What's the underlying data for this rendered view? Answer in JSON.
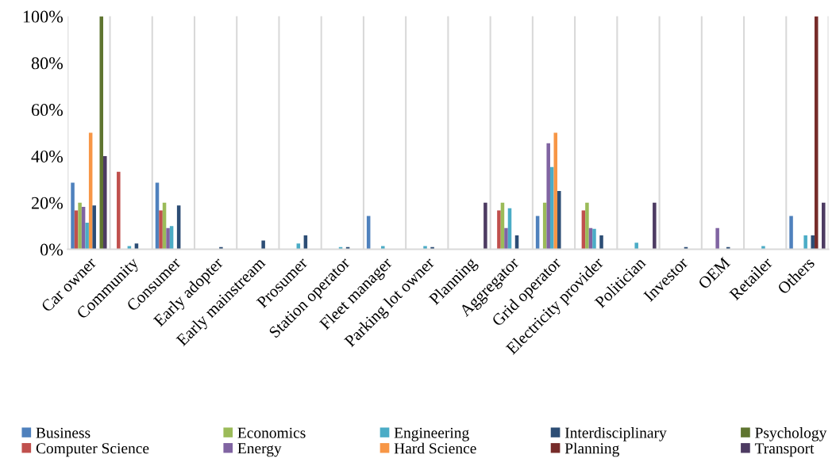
{
  "chart_data": {
    "type": "bar",
    "categories": [
      "Car owner",
      "Community",
      "Consumer",
      "Early adopter",
      "Early mainstream",
      "Prosumer",
      "Station operator",
      "Fleet manager",
      "Parking lot owner",
      "Planning",
      "Aggregator",
      "Grid operator",
      "Electricity provider",
      "Politician",
      "Investor",
      "OEM",
      "Retailer",
      "Others"
    ],
    "series": [
      {
        "name": "Business",
        "color": "#4f81bd",
        "values": [
          28.6,
          0,
          28.6,
          0,
          0,
          0,
          0,
          14.3,
          0,
          0,
          0,
          14.3,
          0,
          0,
          0,
          0,
          0,
          14.3
        ]
      },
      {
        "name": "Computer Science",
        "color": "#c0504d",
        "values": [
          16.7,
          33.3,
          16.7,
          0,
          0,
          0,
          0,
          0,
          0,
          0,
          16.7,
          0,
          16.7,
          0,
          0,
          0,
          0,
          0
        ]
      },
      {
        "name": "Economics",
        "color": "#9bbb59",
        "values": [
          20,
          0,
          20,
          0,
          0,
          0,
          0,
          0,
          0,
          0,
          20,
          20,
          20,
          0,
          0,
          0,
          0,
          0
        ]
      },
      {
        "name": "Energy",
        "color": "#8064a2",
        "values": [
          18.2,
          0,
          9.1,
          0,
          0,
          0,
          0,
          0,
          0,
          0,
          9.1,
          45.5,
          9.1,
          0,
          0,
          9.1,
          0,
          0
        ]
      },
      {
        "name": "Engineering",
        "color": "#4bacc6",
        "values": [
          11.4,
          1.4,
          10,
          0,
          0,
          2.5,
          1,
          1.4,
          1.4,
          0,
          17.6,
          35.3,
          8.8,
          2.8,
          0,
          0,
          1.4,
          6
        ]
      },
      {
        "name": "Hard Science",
        "color": "#f79646",
        "values": [
          50,
          0,
          0,
          0,
          0,
          0,
          0,
          0,
          0,
          0,
          0,
          50,
          0,
          0,
          0,
          0,
          0,
          0
        ]
      },
      {
        "name": "Interdisciplinary",
        "color": "#2c4d75",
        "values": [
          18.8,
          2.5,
          18.8,
          1,
          3.8,
          6,
          1,
          0,
          1,
          0,
          6,
          25,
          6,
          0,
          1,
          1,
          0,
          6
        ]
      },
      {
        "name": "Planning",
        "color": "#772c2a",
        "values": [
          0,
          0,
          0,
          0,
          0,
          0,
          0,
          0,
          0,
          0,
          0,
          0,
          0,
          0,
          0,
          0,
          0,
          100
        ]
      },
      {
        "name": "Psychology",
        "color": "#5f7530",
        "values": [
          100,
          0,
          0,
          0,
          0,
          0,
          0,
          0,
          0,
          0,
          0,
          0,
          0,
          0,
          0,
          0,
          0,
          0
        ]
      },
      {
        "name": "Transport",
        "color": "#4d3b62",
        "values": [
          40,
          0,
          0,
          0,
          0,
          0,
          0,
          0,
          0,
          20,
          0,
          0,
          0,
          20,
          0,
          0,
          0,
          20
        ]
      }
    ],
    "ylim": [
      0,
      100
    ],
    "yticks": [
      {
        "value": 0,
        "label": "0%"
      },
      {
        "value": 20,
        "label": "20%"
      },
      {
        "value": 40,
        "label": "40%"
      },
      {
        "value": 60,
        "label": "60%"
      },
      {
        "value": 80,
        "label": "80%"
      },
      {
        "value": 100,
        "label": "100%"
      }
    ],
    "grid": "x",
    "legend": "bottom"
  }
}
